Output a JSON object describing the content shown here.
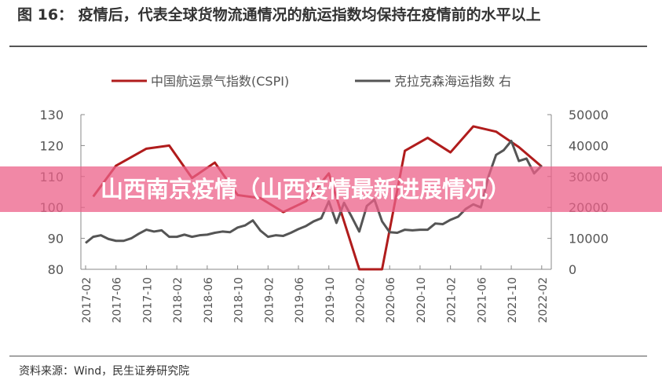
{
  "title": "图 16： 疫情后，代表全球货物流通情况的航运指数均保持在疫情前的水平以上",
  "source": "资料来源：Wind，民生证券研究院",
  "banner": "山西南京疫情（山西疫情最新进展情况）",
  "chart_data": {
    "type": "line",
    "legend_position": "top",
    "left_axis": {
      "ylim": [
        80,
        130
      ],
      "ticks": [
        "80",
        "90",
        "100",
        "110",
        "120",
        "130"
      ]
    },
    "right_axis": {
      "ylim": [
        0,
        50000
      ],
      "ticks": [
        "0",
        "10000",
        "20000",
        "30000",
        "40000",
        "50000"
      ]
    },
    "x_ticks": [
      "2017-02",
      "2017-06",
      "2017-10",
      "2018-02",
      "2018-06",
      "2018-10",
      "2019-02",
      "2019-06",
      "2019-10",
      "2020-02",
      "2020-06",
      "2020-10",
      "2021-02",
      "2021-06",
      "2021-10",
      "2022-02"
    ],
    "series": [
      {
        "name": "中国航运景气指数(CSPI)",
        "axis": "left",
        "color": "#b01c1c",
        "x": [
          "2017-03",
          "2017-06",
          "2017-10",
          "2018-01",
          "2018-04",
          "2018-07",
          "2018-10",
          "2019-01",
          "2019-04",
          "2019-07",
          "2019-10",
          "2020-02",
          "2020-05",
          "2020-08",
          "2020-11",
          "2021-02",
          "2021-05",
          "2021-08",
          "2021-11",
          "2022-02"
        ],
        "values": [
          103.5,
          113.5,
          119,
          120,
          109.5,
          114.5,
          104,
          103,
          98.5,
          102,
          111,
          80,
          80,
          118.3,
          122.5,
          117.8,
          126.2,
          124.5,
          119.5,
          113.2
        ]
      },
      {
        "name": "克拉克森海运指数 右",
        "axis": "right",
        "color": "#555555",
        "x": [
          "2017-02",
          "2017-03",
          "2017-04",
          "2017-05",
          "2017-06",
          "2017-07",
          "2017-08",
          "2017-09",
          "2017-10",
          "2017-11",
          "2017-12",
          "2018-01",
          "2018-02",
          "2018-03",
          "2018-04",
          "2018-05",
          "2018-06",
          "2018-07",
          "2018-08",
          "2018-09",
          "2018-10",
          "2018-11",
          "2018-12",
          "2019-01",
          "2019-02",
          "2019-03",
          "2019-04",
          "2019-05",
          "2019-06",
          "2019-07",
          "2019-08",
          "2019-09",
          "2019-10",
          "2019-11",
          "2019-12",
          "2020-01",
          "2020-02",
          "2020-03",
          "2020-04",
          "2020-05",
          "2020-06",
          "2020-07",
          "2020-08",
          "2020-09",
          "2020-10",
          "2020-11",
          "2020-12",
          "2021-01",
          "2021-02",
          "2021-03",
          "2021-04",
          "2021-05",
          "2021-06",
          "2021-07",
          "2021-08",
          "2021-09",
          "2021-10",
          "2021-11",
          "2021-12",
          "2022-01",
          "2022-02"
        ],
        "values": [
          8500,
          10500,
          11000,
          9800,
          9200,
          9200,
          10000,
          11500,
          12800,
          12200,
          12600,
          10500,
          10500,
          11200,
          10500,
          11000,
          11200,
          11800,
          12200,
          12000,
          13500,
          14200,
          15800,
          12500,
          10500,
          11000,
          10800,
          11800,
          13000,
          14000,
          15500,
          16500,
          22000,
          15000,
          21500,
          17000,
          12200,
          20500,
          22500,
          15500,
          12000,
          11800,
          12800,
          12600,
          12800,
          12800,
          14800,
          14600,
          16000,
          17000,
          19500,
          21000,
          20000,
          30000,
          37000,
          38500,
          41500,
          35000,
          35800,
          31000,
          33500
        ]
      }
    ]
  }
}
